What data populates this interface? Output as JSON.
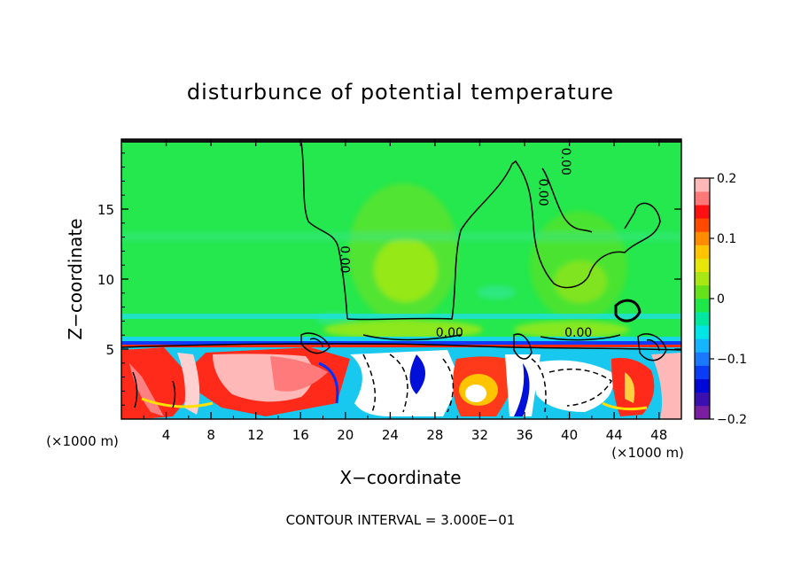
{
  "chart_data": {
    "type": "heatmap",
    "title": "disturbunce of potential temperature",
    "xlabel": "X−coordinate",
    "ylabel": "Z−coordinate",
    "x_unit": "(×1000 m)",
    "y_unit": "(×1000 m)",
    "xlim": [
      0,
      50
    ],
    "ylim": [
      0,
      20
    ],
    "x_ticks": [
      4,
      8,
      12,
      16,
      20,
      24,
      28,
      32,
      36,
      40,
      44,
      48
    ],
    "x_tick_labels": [
      "4",
      "8",
      "12",
      "16",
      "20",
      "24",
      "28",
      "32",
      "36",
      "40",
      "44",
      "48"
    ],
    "y_ticks": [
      5,
      10,
      15
    ],
    "y_tick_labels": [
      "5",
      "10",
      "15"
    ],
    "colorbar": {
      "min": -0.2,
      "max": 0.2,
      "tick_values": [
        0.2,
        0.1,
        0,
        -0.1,
        -0.2
      ],
      "tick_labels": [
        "0.2",
        "0.1",
        "0",
        "−0.1",
        "−0.2"
      ],
      "colors": [
        "#7a1fa2",
        "#3a10b0",
        "#0008d8",
        "#0b3cf5",
        "#1a78ff",
        "#14b4ff",
        "#00e6e6",
        "#00e8a0",
        "#1ee848",
        "#66e21a",
        "#a8e614",
        "#e6e60a",
        "#ffc400",
        "#ff8c00",
        "#ff4a00",
        "#ff1010",
        "#ff7878",
        "#ffb8b8"
      ]
    },
    "contour_labels": [
      {
        "text": "0.00",
        "x": 29.3,
        "z": 5.9,
        "rotate": 0
      },
      {
        "text": "0.00",
        "x": 40.8,
        "z": 5.9,
        "rotate": 0
      },
      {
        "text": "0.00",
        "x": 19.6,
        "z": 11.4,
        "rotate": 90
      },
      {
        "text": "0.00",
        "x": 37.3,
        "z": 16.2,
        "rotate": 90
      },
      {
        "text": "0.00",
        "x": 39.3,
        "z": 18.4,
        "rotate": 90
      }
    ],
    "footer": "CONTOUR INTERVAL = 3.000E−01"
  }
}
